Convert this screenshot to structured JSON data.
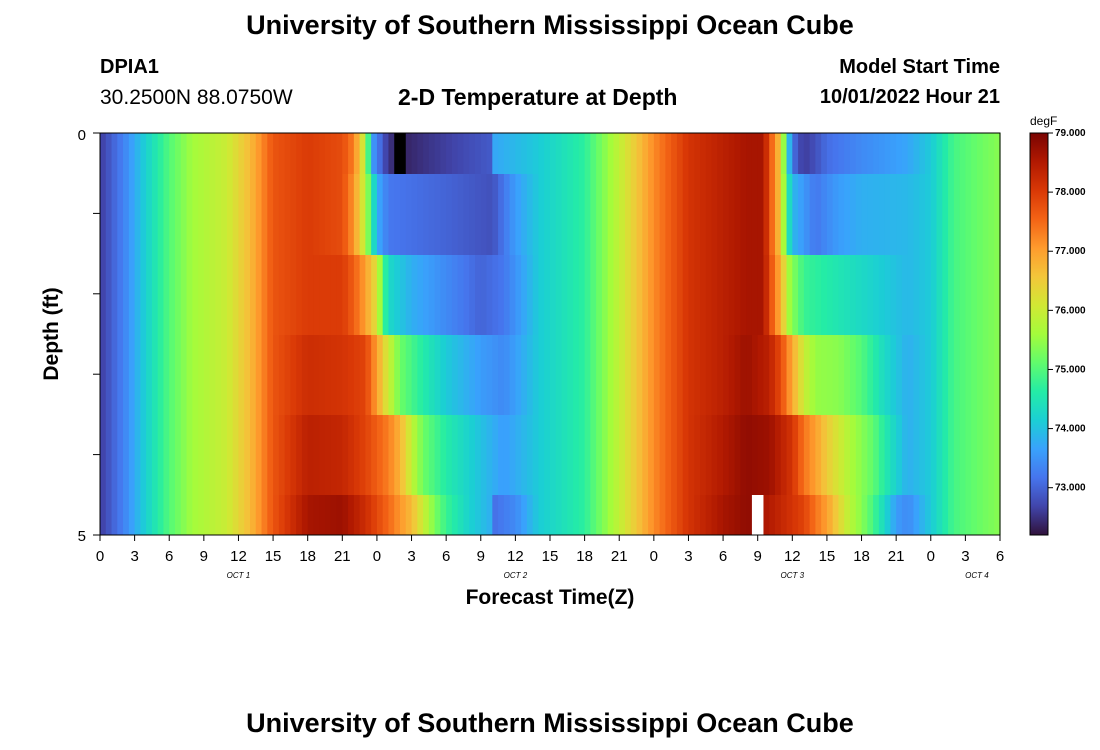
{
  "header": {
    "title": "University of Southern Mississippi Ocean Cube",
    "station_id": "DPIA1",
    "station_coords": "30.2500N  88.0750W",
    "chart_title": "2-D Temperature at Depth",
    "model_start_label": "Model Start Time",
    "model_start_value": "10/01/2022 Hour 21"
  },
  "footer": {
    "title": "University of Southern Mississippi Ocean Cube"
  },
  "chart_data": {
    "type": "heatmap",
    "title": "2-D Temperature at Depth",
    "xlabel": "Forecast Time(Z)",
    "ylabel": "Depth (ft)",
    "x_ticks": [
      "0",
      "3",
      "6",
      "9",
      "12",
      "15",
      "18",
      "21",
      "0",
      "3",
      "6",
      "9",
      "12",
      "15",
      "18",
      "21",
      "0",
      "3",
      "6",
      "9",
      "12",
      "15",
      "18",
      "21",
      "0",
      "3",
      "6"
    ],
    "x_tick_hours": [
      0,
      3,
      6,
      9,
      12,
      15,
      18,
      21,
      24,
      27,
      30,
      33,
      36,
      39,
      42,
      45,
      48,
      51,
      54,
      57,
      60,
      63,
      66,
      69,
      72,
      75,
      78
    ],
    "date_labels": [
      {
        "text": "OCT 1",
        "hour": 12
      },
      {
        "text": "OCT 2",
        "hour": 36
      },
      {
        "text": "OCT 3",
        "hour": 60
      },
      {
        "text": "OCT 4",
        "hour": 76
      }
    ],
    "x_range_hours": [
      0,
      78
    ],
    "y_ticks": [
      "0",
      "5"
    ],
    "y_range_ft": [
      0,
      5
    ],
    "depth_levels": 5,
    "colorbar": {
      "unit": "degF",
      "min": 72.2,
      "max": 79.0,
      "tick_labels": [
        "79.000",
        "78.000",
        "77.000",
        "76.000",
        "75.000",
        "74.000",
        "73.000"
      ],
      "tick_values": [
        79,
        78,
        77,
        76,
        75,
        74,
        73
      ],
      "colormap": [
        "#30123b",
        "#4145ab",
        "#4675ed",
        "#39a2fc",
        "#1bcfd4",
        "#24eca6",
        "#61fc6c",
        "#a4fc3b",
        "#d1e834",
        "#f3c63a",
        "#fe9b2d",
        "#f36315",
        "#d93806",
        "#b11901",
        "#7a0402"
      ]
    },
    "series_note": "rows = depth levels (top to bottom), each row gives [hour, degF] keyframes",
    "rows": [
      [
        [
          0,
          72.6
        ],
        [
          2,
          73.3
        ],
        [
          4,
          74.2
        ],
        [
          6,
          75.0
        ],
        [
          8,
          75.6
        ],
        [
          11,
          76.0
        ],
        [
          13,
          76.7
        ],
        [
          15,
          77.7
        ],
        [
          18,
          78.0
        ],
        [
          21,
          77.8
        ],
        [
          22,
          77.3
        ],
        [
          23,
          75.8
        ],
        [
          23.6,
          73.6
        ],
        [
          24,
          73.3
        ],
        [
          25,
          72.5
        ],
        [
          25.7,
          72.4
        ],
        [
          25.8,
          0.0
        ],
        [
          26.6,
          0.0
        ],
        [
          26.7,
          72.4
        ],
        [
          28,
          72.5
        ],
        [
          31,
          72.7
        ],
        [
          33.9,
          72.9
        ],
        [
          34,
          73.7
        ],
        [
          38,
          74.1
        ],
        [
          42,
          74.7
        ],
        [
          45,
          75.9
        ],
        [
          48,
          77.2
        ],
        [
          51,
          78.1
        ],
        [
          54,
          78.4
        ],
        [
          56,
          78.6
        ],
        [
          57.5,
          78.6
        ],
        [
          58,
          77.8
        ],
        [
          59,
          76.5
        ],
        [
          59.5,
          74.5
        ],
        [
          60,
          73.2
        ],
        [
          60.5,
          72.8
        ],
        [
          61,
          72.6
        ],
        [
          62,
          72.8
        ],
        [
          63,
          73.1
        ],
        [
          66,
          73.4
        ],
        [
          70,
          73.7
        ],
        [
          72,
          74.1
        ],
        [
          74,
          74.9
        ],
        [
          78,
          75.4
        ]
      ],
      [
        [
          0,
          72.6
        ],
        [
          2,
          73.3
        ],
        [
          4,
          74.2
        ],
        [
          6,
          75.0
        ],
        [
          8,
          75.6
        ],
        [
          11,
          76.0
        ],
        [
          13,
          76.7
        ],
        [
          15,
          77.7
        ],
        [
          18,
          78.0
        ],
        [
          21,
          77.8
        ],
        [
          22,
          77.1
        ],
        [
          23,
          75.8
        ],
        [
          23.6,
          74.6
        ],
        [
          24,
          73.8
        ],
        [
          25,
          73.2
        ],
        [
          30,
          73.0
        ],
        [
          34,
          72.8
        ],
        [
          36,
          73.6
        ],
        [
          38,
          74.1
        ],
        [
          42,
          74.7
        ],
        [
          45,
          75.9
        ],
        [
          48,
          77.2
        ],
        [
          51,
          78.1
        ],
        [
          54,
          78.4
        ],
        [
          56,
          78.6
        ],
        [
          57.5,
          78.6
        ],
        [
          58,
          77.8
        ],
        [
          59,
          76.5
        ],
        [
          59.5,
          74.8
        ],
        [
          60,
          73.9
        ],
        [
          62,
          73.2
        ],
        [
          64,
          73.6
        ],
        [
          66,
          73.8
        ],
        [
          70,
          73.9
        ],
        [
          72,
          74.1
        ],
        [
          74,
          74.9
        ],
        [
          78,
          75.4
        ]
      ],
      [
        [
          0,
          72.6
        ],
        [
          2,
          73.3
        ],
        [
          4,
          74.2
        ],
        [
          6,
          75.0
        ],
        [
          8,
          75.6
        ],
        [
          11,
          76.0
        ],
        [
          13,
          76.7
        ],
        [
          15,
          77.7
        ],
        [
          18,
          78.0
        ],
        [
          21,
          78.0
        ],
        [
          22,
          77.6
        ],
        [
          23,
          77.0
        ],
        [
          24,
          76.2
        ],
        [
          24.5,
          75.0
        ],
        [
          25,
          74.3
        ],
        [
          27,
          73.8
        ],
        [
          30,
          73.4
        ],
        [
          33,
          73.0
        ],
        [
          35,
          73.2
        ],
        [
          38,
          74.1
        ],
        [
          42,
          74.7
        ],
        [
          45,
          75.9
        ],
        [
          48,
          77.2
        ],
        [
          51,
          78.1
        ],
        [
          54,
          78.4
        ],
        [
          56,
          78.6
        ],
        [
          57.5,
          78.6
        ],
        [
          58,
          77.9
        ],
        [
          59,
          76.8
        ],
        [
          59.8,
          75.5
        ],
        [
          61,
          74.8
        ],
        [
          64,
          74.5
        ],
        [
          66,
          74.3
        ],
        [
          70,
          73.9
        ],
        [
          72,
          74.1
        ],
        [
          74,
          74.9
        ],
        [
          78,
          75.4
        ]
      ],
      [
        [
          0,
          72.6
        ],
        [
          2,
          73.3
        ],
        [
          4,
          74.2
        ],
        [
          6,
          75.0
        ],
        [
          8,
          75.6
        ],
        [
          11,
          76.0
        ],
        [
          13,
          76.7
        ],
        [
          15,
          77.7
        ],
        [
          18,
          78.2
        ],
        [
          21,
          78.1
        ],
        [
          23,
          77.9
        ],
        [
          24,
          77.0
        ],
        [
          25,
          76.0
        ],
        [
          26,
          75.2
        ],
        [
          28,
          74.6
        ],
        [
          30,
          74.1
        ],
        [
          33,
          73.6
        ],
        [
          35,
          73.4
        ],
        [
          38,
          74.1
        ],
        [
          42,
          74.7
        ],
        [
          45,
          75.9
        ],
        [
          48,
          77.2
        ],
        [
          51,
          78.1
        ],
        [
          54,
          78.4
        ],
        [
          56,
          78.7
        ],
        [
          58,
          78.4
        ],
        [
          59,
          77.8
        ],
        [
          60,
          76.9
        ],
        [
          61,
          76.0
        ],
        [
          62,
          75.5
        ],
        [
          64,
          75.4
        ],
        [
          66,
          75.0
        ],
        [
          68,
          74.3
        ],
        [
          70,
          73.8
        ],
        [
          72,
          74.1
        ],
        [
          74,
          74.9
        ],
        [
          78,
          75.4
        ]
      ],
      [
        [
          0,
          72.6
        ],
        [
          2,
          73.3
        ],
        [
          4,
          74.2
        ],
        [
          6,
          75.0
        ],
        [
          8,
          75.6
        ],
        [
          11,
          76.0
        ],
        [
          13,
          76.7
        ],
        [
          15,
          77.7
        ],
        [
          18,
          78.4
        ],
        [
          21,
          78.3
        ],
        [
          23,
          77.9
        ],
        [
          25,
          77.3
        ],
        [
          26,
          76.8
        ],
        [
          27,
          75.9
        ],
        [
          28,
          75.2
        ],
        [
          30,
          74.6
        ],
        [
          33,
          74.0
        ],
        [
          35,
          73.6
        ],
        [
          38,
          74.1
        ],
        [
          42,
          74.7
        ],
        [
          45,
          75.9
        ],
        [
          48,
          77.2
        ],
        [
          51,
          78.1
        ],
        [
          54,
          78.5
        ],
        [
          56,
          78.8
        ],
        [
          58,
          78.7
        ],
        [
          60,
          78.1
        ],
        [
          61,
          77.4
        ],
        [
          62,
          77.0
        ],
        [
          63,
          76.5
        ],
        [
          64,
          76.1
        ],
        [
          65,
          75.7
        ],
        [
          67,
          75.1
        ],
        [
          68,
          74.6
        ],
        [
          70,
          73.8
        ],
        [
          72,
          74.1
        ],
        [
          74,
          74.9
        ],
        [
          78,
          75.4
        ]
      ],
      [
        [
          0,
          72.6
        ],
        [
          2,
          73.3
        ],
        [
          4,
          74.2
        ],
        [
          6,
          75.0
        ],
        [
          8,
          75.6
        ],
        [
          11,
          76.0
        ],
        [
          13,
          76.7
        ],
        [
          15,
          77.7
        ],
        [
          18,
          78.6
        ],
        [
          21,
          78.7
        ],
        [
          23,
          78.2
        ],
        [
          25,
          77.5
        ],
        [
          27,
          76.7
        ],
        [
          28,
          76.0
        ],
        [
          29,
          75.3
        ],
        [
          30,
          74.8
        ],
        [
          32,
          74.2
        ],
        [
          33.9,
          73.8
        ],
        [
          34,
          73.1
        ],
        [
          36,
          73.4
        ],
        [
          38,
          74.1
        ],
        [
          42,
          74.7
        ],
        [
          45,
          75.9
        ],
        [
          48,
          77.2
        ],
        [
          51,
          78.1
        ],
        [
          54,
          78.6
        ],
        [
          55,
          78.7
        ],
        [
          56,
          78.8
        ],
        [
          56.7,
          78.8
        ],
        [
          56.8,
          999
        ],
        [
          57.3,
          999
        ],
        [
          57.4,
          78.6
        ],
        [
          59,
          78.3
        ],
        [
          61,
          77.9
        ],
        [
          62,
          77.4
        ],
        [
          63,
          77.0
        ],
        [
          64,
          76.4
        ],
        [
          65,
          75.8
        ],
        [
          66,
          75.4
        ],
        [
          67,
          74.9
        ],
        [
          68,
          74.3
        ],
        [
          69,
          73.6
        ],
        [
          70,
          73.4
        ],
        [
          72,
          74.1
        ],
        [
          74,
          74.9
        ],
        [
          78,
          75.4
        ]
      ]
    ]
  }
}
